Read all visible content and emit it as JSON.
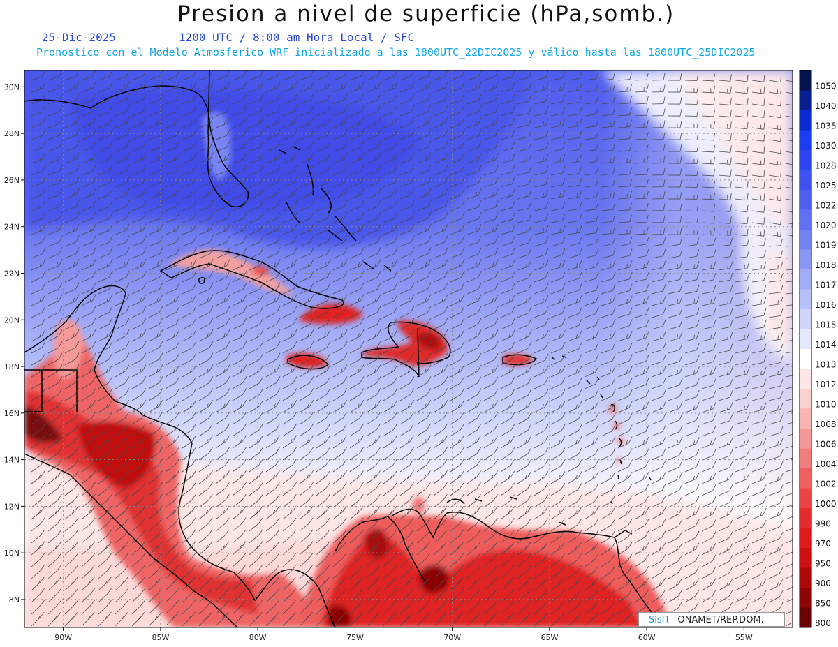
{
  "header": {
    "title": "Presion a nivel de superficie (hPa,somb.)",
    "date": "25-Dic-2025",
    "time_info": "1200 UTC / 8:00 am Hora Local / SFC",
    "model_info": "Pronostico con el Modelo Atmosferico WRF inicializado a las 1800UTC_22DIC2025 y válido hasta las  1800UTC_25DIC2025"
  },
  "map": {
    "lon_labels": [
      "90W",
      "85W",
      "80W",
      "75W",
      "70W",
      "65W",
      "60W",
      "55W"
    ],
    "lat_labels": [
      "30N",
      "28N",
      "26N",
      "24N",
      "22N",
      "20N",
      "18N",
      "16N",
      "14N",
      "12N",
      "10N",
      "8N"
    ],
    "lon_range": [
      -92,
      -52.5
    ],
    "lat_range": [
      6.8,
      30.7
    ]
  },
  "colorbar": {
    "levels": [
      "1050",
      "1040",
      "1035",
      "1030",
      "1028",
      "1025",
      "1022",
      "1020",
      "1019",
      "1018",
      "1017",
      "1016",
      "1015",
      "1014",
      "1013",
      "1012",
      "1010",
      "1008",
      "1006",
      "1004",
      "1002",
      "1000",
      "990",
      "970",
      "950",
      "900",
      "850",
      "800"
    ],
    "colors": [
      "#06124d",
      "#0a1f8f",
      "#0b2bd0",
      "#1a3cf2",
      "#2b46ee",
      "#3d52ee",
      "#4e5ff0",
      "#6170f2",
      "#7482f3",
      "#8a97f5",
      "#a1abf7",
      "#b9c1f9",
      "#d0d6fb",
      "#e6e9fd",
      "#ffffff",
      "#fde6e6",
      "#fbd0d0",
      "#f9b4b4",
      "#f69898",
      "#f27c7c",
      "#ee6060",
      "#ea4444",
      "#e52b2b",
      "#df1a1a",
      "#cc0f0f",
      "#ad0707",
      "#8c0404",
      "#6a0202"
    ]
  },
  "credit": {
    "logo": "SisΠ",
    "text": "- ONAMET/REP.DOM."
  }
}
